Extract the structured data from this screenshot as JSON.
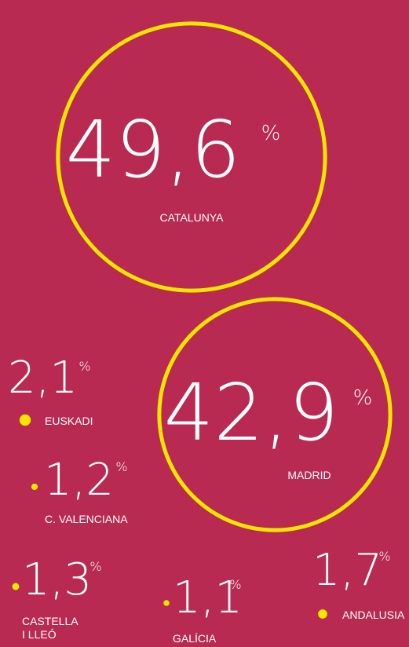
{
  "chart_data": {
    "type": "bubble",
    "unit": "%",
    "categories": [
      "CATALUNYA",
      "MADRID",
      "EUSKADI",
      "C. VALENCIANA",
      "CASTELLA I LLEÓ",
      "GALÍCIA",
      "ANDALUSIA"
    ],
    "values": [
      49.6,
      42.9,
      2.1,
      1.2,
      1.3,
      1.1,
      1.7
    ],
    "value_labels": [
      "49,6",
      "42,9",
      "2,1",
      "1,2",
      "1,3",
      "1,1",
      "1,7"
    ],
    "color": "#ffe500",
    "background": "#b82a51"
  }
}
